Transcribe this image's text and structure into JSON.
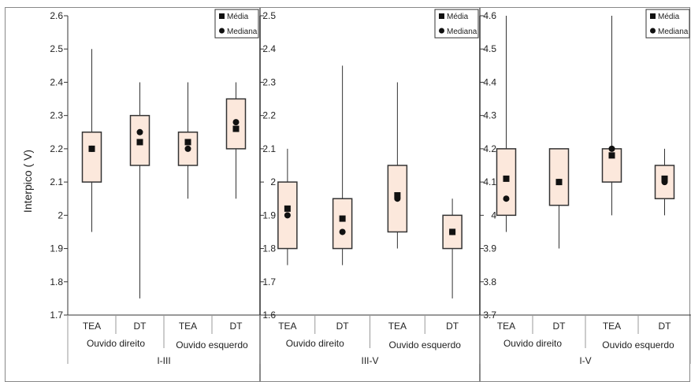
{
  "y_label": "Interpico ( V)",
  "chart_data": [
    {
      "type": "box",
      "panel_label": "I-III",
      "ylim": [
        1.7,
        2.6
      ],
      "yticks": [
        "1.7",
        "1.8",
        "1.9",
        "2",
        "2.1",
        "2.2",
        "2.3",
        "2.4",
        "2.5",
        "2.6"
      ],
      "legend": {
        "position": "top-right",
        "mean_label": "Média",
        "median_label": "Mediana"
      },
      "groups": [
        {
          "label": "Ouvido direito",
          "boxes": [
            {
              "label": "TEA",
              "min": 1.95,
              "q1": 2.1,
              "q3": 2.25,
              "max": 2.5,
              "mean": 2.2,
              "median": 2.2
            },
            {
              "label": "DT",
              "min": 1.75,
              "q1": 2.15,
              "q3": 2.3,
              "max": 2.4,
              "mean": 2.22,
              "median": 2.25
            }
          ]
        },
        {
          "label": "Ouvido esquerdo",
          "boxes": [
            {
              "label": "TEA",
              "min": 2.05,
              "q1": 2.15,
              "q3": 2.25,
              "max": 2.4,
              "mean": 2.22,
              "median": 2.2
            },
            {
              "label": "DT",
              "min": 2.05,
              "q1": 2.2,
              "q3": 2.35,
              "max": 2.4,
              "mean": 2.26,
              "median": 2.28
            }
          ]
        }
      ]
    },
    {
      "type": "box",
      "panel_label": "III-V",
      "ylim": [
        1.6,
        2.5
      ],
      "yticks": [
        "1.6",
        "1.7",
        "1.8",
        "1.9",
        "2",
        "2.1",
        "2.2",
        "2.3",
        "2.4",
        "2.5"
      ],
      "legend": {
        "position": "top-right",
        "mean_label": "Média",
        "median_label": "Mediana"
      },
      "groups": [
        {
          "label": "Ouvido direito",
          "boxes": [
            {
              "label": "TEA",
              "min": 1.75,
              "q1": 1.8,
              "q3": 2.0,
              "max": 2.1,
              "mean": 1.92,
              "median": 1.9
            },
            {
              "label": "DT",
              "min": 1.75,
              "q1": 1.8,
              "q3": 1.95,
              "max": 2.35,
              "mean": 1.89,
              "median": 1.85
            }
          ]
        },
        {
          "label": "Ouvido esquerdo",
          "boxes": [
            {
              "label": "TEA",
              "min": 1.8,
              "q1": 1.85,
              "q3": 2.05,
              "max": 2.3,
              "mean": 1.96,
              "median": 1.95
            },
            {
              "label": "DT",
              "min": 1.65,
              "q1": 1.8,
              "q3": 1.9,
              "max": 1.95,
              "mean": 1.85,
              "median": 1.85
            }
          ]
        }
      ]
    },
    {
      "type": "box",
      "panel_label": "I-V",
      "ylim": [
        3.7,
        4.6
      ],
      "yticks": [
        "3.7",
        "3.8",
        "3.9",
        "4",
        "4.1",
        "4.2",
        "4.3",
        "4.4",
        "4.5",
        "4.6"
      ],
      "legend": {
        "position": "top-right",
        "mean_label": "Média",
        "median_label": "Mediana"
      },
      "groups": [
        {
          "label": "Ouvido direito",
          "boxes": [
            {
              "label": "TEA",
              "min": 3.95,
              "q1": 4.0,
              "q3": 4.2,
              "max": 4.6,
              "mean": 4.11,
              "median": 4.05
            },
            {
              "label": "DT",
              "min": 3.9,
              "q1": 4.03,
              "q3": 4.2,
              "max": 4.2,
              "mean": 4.1,
              "median": 4.1
            }
          ]
        },
        {
          "label": "Ouvido esquerdo",
          "boxes": [
            {
              "label": "TEA",
              "min": 4.0,
              "q1": 4.1,
              "q3": 4.2,
              "max": 4.6,
              "mean": 4.18,
              "median": 4.2
            },
            {
              "label": "DT",
              "min": 4.0,
              "q1": 4.05,
              "q3": 4.15,
              "max": 4.2,
              "mean": 4.11,
              "median": 4.1
            }
          ]
        }
      ]
    }
  ],
  "colors": {
    "box_fill": "#fce8dc",
    "stroke": "#333333",
    "marker": "#111111",
    "grid": "#999999",
    "panel_border": "#888888"
  }
}
